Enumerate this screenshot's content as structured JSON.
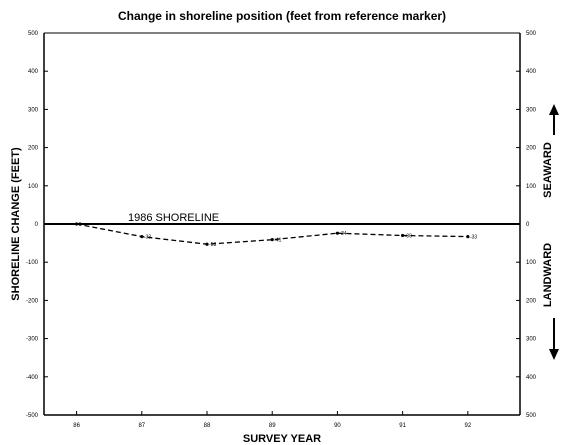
{
  "chart_data": {
    "type": "line",
    "title": "Change in shoreline position (feet from reference marker)",
    "xlabel": "SURVEY YEAR",
    "ylabel": "SHORELINE CHANGE (FEET)",
    "right_label_top": "SEAWARD",
    "right_label_bottom": "LANDWARD",
    "annotation": "1986 SHORELINE",
    "x_tick_labels": [
      "86",
      "87",
      "88",
      "89",
      "90",
      "91",
      "92"
    ],
    "y_tick_labels_left": [
      "500",
      "400",
      "300",
      "200",
      "100",
      "0",
      "-100",
      "-200",
      "-300",
      "-400",
      "-500"
    ],
    "y_tick_labels_right": [
      "500",
      "400",
      "300",
      "200",
      "100",
      "0",
      "100",
      "200",
      "300",
      "400",
      "500"
    ],
    "ylim": [
      -500,
      500
    ],
    "xlim": [
      85.5,
      92.8
    ],
    "baseline": 0,
    "grid": false,
    "series": [
      {
        "x": [
          86,
          87,
          88,
          89,
          90,
          91,
          92
        ],
        "values": [
          0,
          -33,
          -53,
          -41,
          -24,
          -30,
          -33
        ],
        "point_labels": [
          "0",
          "-33",
          "-53",
          "-41",
          "-24",
          "-30",
          "-33"
        ]
      }
    ]
  }
}
